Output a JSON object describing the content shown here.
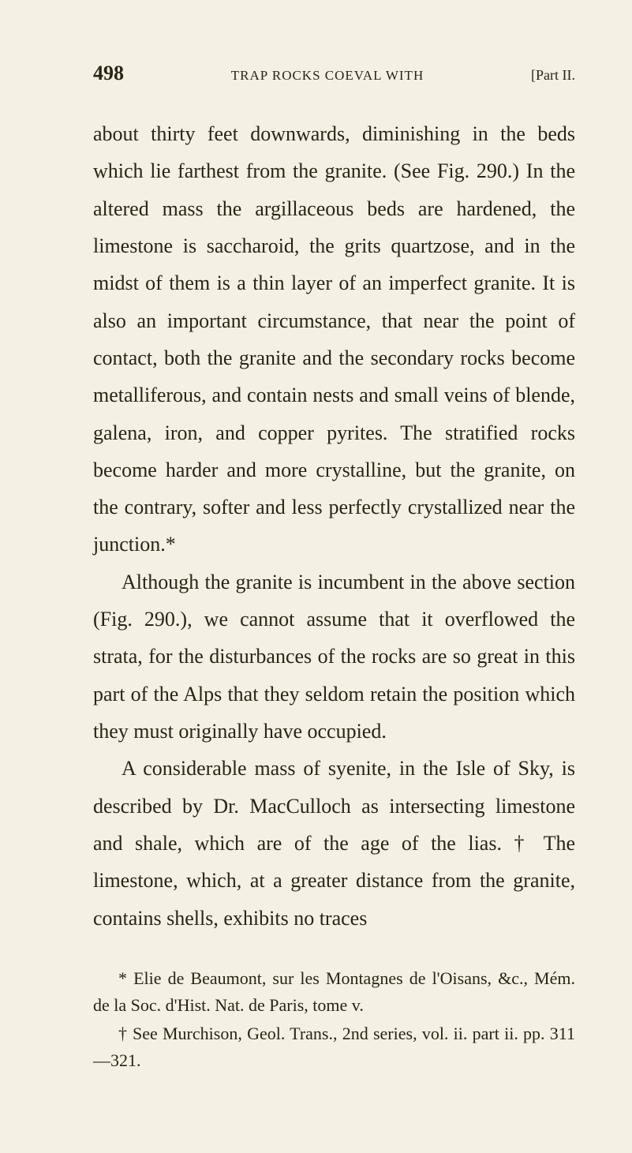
{
  "header": {
    "page_number": "498",
    "running_title": "TRAP ROCKS COEVAL WITH",
    "part_label": "[Part II."
  },
  "paragraphs": {
    "p1": "about thirty feet downwards, diminishing in the beds which lie farthest from the granite. (See Fig. 290.) In the altered mass the argillaceous beds are hardened, the limestone is saccharoid, the grits quartzose, and in the midst of them is a thin layer of an imperfect granite. It is also an important circumstance, that near the point of contact, both the granite and the secondary rocks become metalliferous, and contain nests and small veins of blende, galena, iron, and copper pyrites. The stratified rocks become harder and more crystalline, but the granite, on the contrary, softer and less perfectly crystallized near the junction.*",
    "p2": "Although the granite is incumbent in the above section (Fig. 290.), we cannot assume that it overflowed the strata, for the disturbances of the rocks are so great in this part of the Alps that they seldom retain the position which they must originally have occupied.",
    "p3": "A considerable mass of syenite, in the Isle of Sky, is described by Dr. MacCulloch as intersecting limestone and shale, which are of the age of the lias. † The limestone, which, at a greater distance from the granite, contains shells, exhibits no traces"
  },
  "footnotes": {
    "f1": "* Elie de Beaumont, sur les Montagnes de l'Oisans, &c., Mém. de la Soc. d'Hist. Nat. de Paris, tome v.",
    "f2": "† See Murchison, Geol. Trans., 2nd series, vol. ii. part ii. pp. 311—321."
  },
  "colors": {
    "background": "#f5f0e4",
    "text": "#2a2416"
  },
  "typography": {
    "body_fontsize": 26,
    "body_lineheight": 1.82,
    "header_fontsize": 20,
    "footnote_fontsize": 22,
    "page_number_fontsize": 26,
    "running_title_fontsize": 17,
    "font_family": "Times New Roman"
  }
}
